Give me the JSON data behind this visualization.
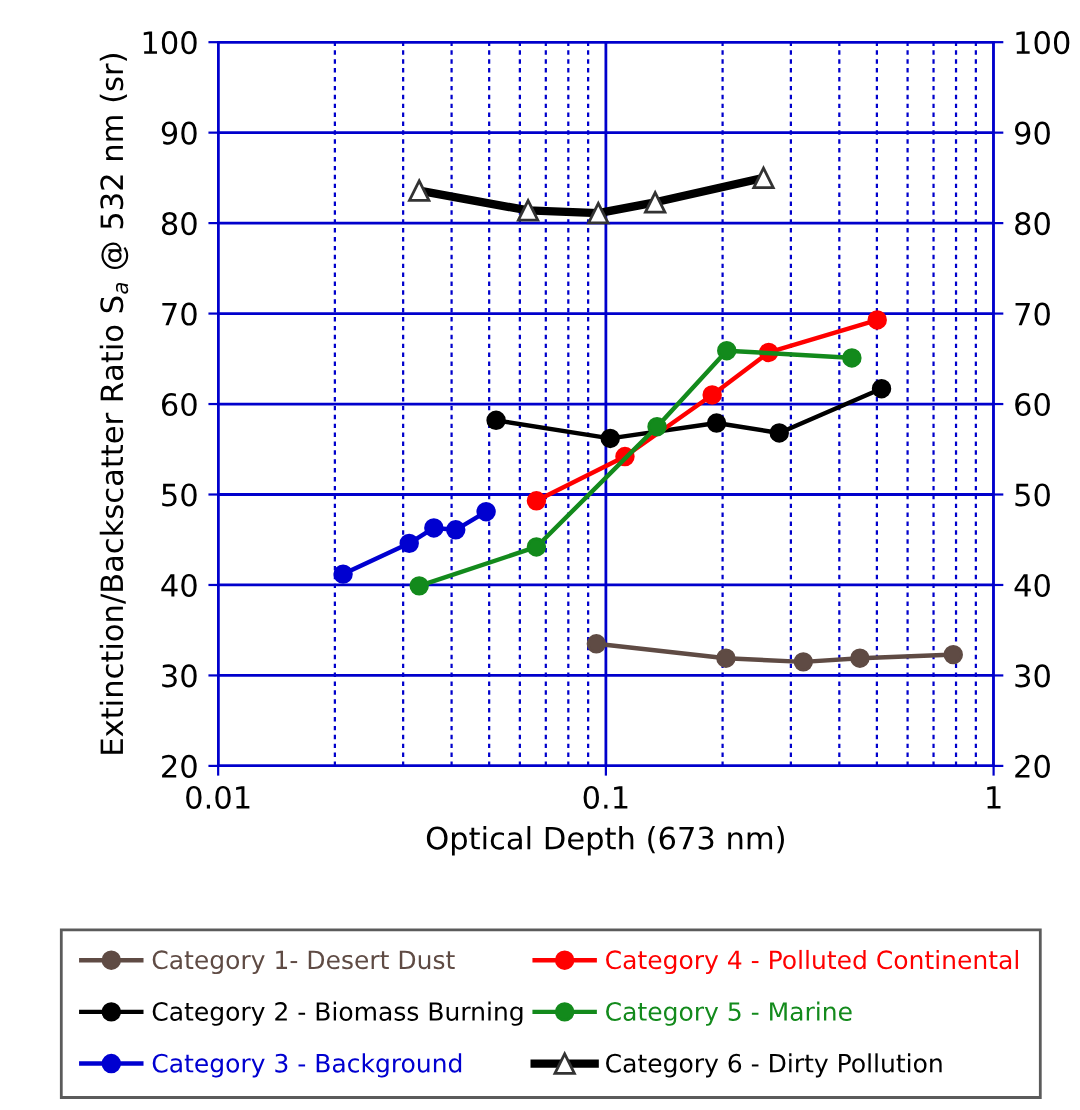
{
  "chart_data": {
    "type": "line",
    "xlabel": "Optical Depth (673 nm)",
    "ylabel": "Extinction/Backscatter Ratio S$_{a}$ @ 532 nm (sr)",
    "log": "x",
    "xlim": [
      0.01,
      1
    ],
    "xticks": [
      0.01,
      {
        "value": 0.02,
        "label": null
      },
      {
        "value": 0.03,
        "label": null
      },
      {
        "value": 0.04,
        "label": null
      },
      {
        "value": 0.05,
        "label": null
      },
      {
        "value": 0.06,
        "label": null
      },
      {
        "value": 0.07,
        "label": null
      },
      {
        "value": 0.08,
        "label": null
      },
      {
        "value": 0.09,
        "label": null
      },
      0.1,
      {
        "value": 0.2,
        "label": null
      },
      {
        "value": 0.3,
        "label": null
      },
      {
        "value": 0.4,
        "label": null
      },
      {
        "value": 0.5,
        "label": null
      },
      {
        "value": 0.6,
        "label": null
      },
      {
        "value": 0.7,
        "label": null
      },
      {
        "value": 0.8,
        "label": null
      },
      {
        "value": 0.9,
        "label": null
      },
      1
    ],
    "ylim": [
      20,
      100
    ],
    "yticks": [
      20,
      30,
      40,
      50,
      60,
      70,
      80,
      90,
      100
    ],
    "y2lim": [
      20,
      100
    ],
    "y2ticks": [
      20,
      30,
      40,
      50,
      60,
      70,
      80,
      90,
      100
    ],
    "grid": true,
    "legend": "bottom",
    "marker": "circle",
    "series": [
      {
        "name": "Category 1- Desert Dust",
        "color": "#5f4b44",
        "x": [
          0.0945,
          0.204,
          0.323,
          0.452,
          0.787
        ],
        "values": [
          33.5,
          31.9,
          31.5,
          31.9,
          32.3
        ]
      },
      {
        "name": "Category 2 - Biomass Burning",
        "color": "#000000",
        "x": [
          0.0521,
          0.1026,
          0.193,
          0.28,
          0.514
        ],
        "values": [
          58.2,
          56.2,
          57.9,
          56.8,
          61.7
        ]
      },
      {
        "name": "Category 3 - Background",
        "color": "#0000d0",
        "x": [
          0.021,
          0.0311,
          0.036,
          0.041,
          0.0491
        ],
        "values": [
          41.2,
          44.6,
          46.3,
          46.1,
          48.1
        ]
      },
      {
        "name": "Category 4 - Polluted Continental",
        "color": "#ff0000",
        "x": [
          0.0662,
          0.112,
          0.188,
          0.263,
          0.501
        ],
        "values": [
          49.3,
          54.2,
          61.0,
          65.7,
          69.3
        ]
      },
      {
        "name": "Category 5 - Marine",
        "color": "#138a1c",
        "x": [
          0.033,
          0.0662,
          0.1355,
          0.205,
          0.431
        ],
        "values": [
          39.9,
          44.2,
          57.5,
          65.9,
          65.1
        ]
      },
      {
        "name": "Category 6 - Dirty Pollution",
        "color": "#000000",
        "marker": "triangle",
        "x": [
          0.033,
          0.063,
          0.0956,
          0.134,
          0.255
        ],
        "values": [
          83.6,
          81.4,
          81.1,
          82.3,
          85.0
        ]
      }
    ]
  }
}
